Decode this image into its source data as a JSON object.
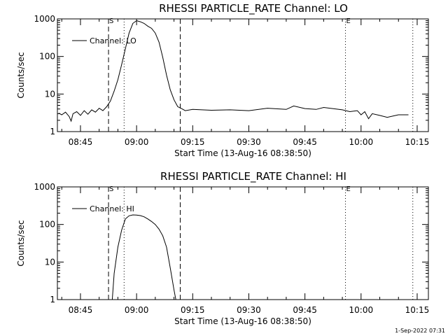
{
  "footer_stamp": "1-Sep-2022 07:31",
  "chart_data": [
    {
      "type": "line",
      "title": "RHESSI PARTICLE_RATE Channel: LO",
      "xlabel": "Start Time (13-Aug-16 08:38:50)",
      "ylabel": "Counts/sec",
      "yscale": "log",
      "xlim": [
        "08:38:50",
        "10:18:00"
      ],
      "ylim": [
        1,
        1000
      ],
      "xticks": [
        "08:45",
        "09:00",
        "09:15",
        "09:30",
        "09:45",
        "10:00",
        "10:15"
      ],
      "yticks": [
        "1",
        "10",
        "100",
        "1000"
      ],
      "legend": "top-left",
      "legend_entries": [
        "Channel: LO"
      ],
      "markers": [
        {
          "time": "08:52:30",
          "label": "S",
          "style": "dashed"
        },
        {
          "time": "08:56:40",
          "label": "",
          "style": "dotted"
        },
        {
          "time": "09:11:40",
          "label": "",
          "style": "dashed"
        },
        {
          "time": "09:55:50",
          "label": "E",
          "style": "dotted"
        },
        {
          "time": "10:13:50",
          "label": "",
          "style": "dotted"
        }
      ],
      "series": [
        {
          "name": "Channel: LO",
          "x": [
            "08:39:10",
            "08:40:00",
            "08:41:00",
            "08:42:00",
            "08:42:30",
            "08:43:00",
            "08:44:00",
            "08:45:00",
            "08:46:00",
            "08:47:00",
            "08:48:00",
            "08:49:00",
            "08:50:00",
            "08:51:00",
            "08:52:00",
            "08:53:00",
            "08:54:00",
            "08:55:00",
            "08:56:00",
            "08:57:00",
            "08:58:00",
            "08:59:00",
            "09:00:00",
            "09:01:00",
            "09:02:00",
            "09:03:00",
            "09:04:00",
            "09:05:00",
            "09:06:00",
            "09:07:00",
            "09:08:00",
            "09:09:00",
            "09:10:00",
            "09:11:00",
            "09:12:00",
            "09:13:00",
            "09:15:00",
            "09:20:00",
            "09:25:00",
            "09:30:00",
            "09:35:00",
            "09:40:00",
            "09:42:00",
            "09:45:00",
            "09:48:00",
            "09:50:00",
            "09:55:00",
            "09:57:00",
            "09:59:00",
            "10:00:00",
            "10:01:00",
            "10:02:00",
            "10:03:00",
            "10:05:00",
            "10:07:00",
            "10:10:00",
            "10:12:40"
          ],
          "y": [
            3.1,
            2.8,
            3.3,
            2.5,
            1.9,
            3.0,
            3.4,
            2.7,
            3.6,
            2.9,
            3.8,
            3.3,
            4.2,
            3.6,
            4.6,
            6.5,
            12,
            24,
            60,
            160,
            420,
            760,
            900,
            840,
            760,
            640,
            560,
            420,
            240,
            95,
            32,
            13,
            7,
            4.6,
            4.1,
            3.6,
            3.9,
            3.7,
            3.8,
            3.6,
            4.2,
            3.9,
            4.8,
            4.1,
            3.9,
            4.4,
            3.8,
            3.4,
            3.6,
            2.8,
            3.4,
            2.2,
            3.0,
            2.7,
            2.4,
            2.8,
            2.8
          ]
        }
      ]
    },
    {
      "type": "line",
      "title": "RHESSI PARTICLE_RATE Channel: HI",
      "xlabel": "Start Time (13-Aug-16 08:38:50)",
      "ylabel": "Counts/sec",
      "yscale": "log",
      "xlim": [
        "08:38:50",
        "10:18:00"
      ],
      "ylim": [
        1,
        1000
      ],
      "xticks": [
        "08:45",
        "09:00",
        "09:15",
        "09:30",
        "09:45",
        "10:00",
        "10:15"
      ],
      "yticks": [
        "1",
        "10",
        "100",
        "1000"
      ],
      "legend": "top-left",
      "legend_entries": [
        "Channel: HI"
      ],
      "markers": [
        {
          "time": "08:52:30",
          "label": "S",
          "style": "dashed"
        },
        {
          "time": "08:56:40",
          "label": "",
          "style": "dotted"
        },
        {
          "time": "09:11:40",
          "label": "",
          "style": "dashed"
        },
        {
          "time": "09:55:50",
          "label": "E",
          "style": "dotted"
        },
        {
          "time": "10:13:50",
          "label": "",
          "style": "dotted"
        }
      ],
      "series": [
        {
          "name": "Channel: HI",
          "x": [
            "08:53:30",
            "08:54:00",
            "08:55:00",
            "08:56:00",
            "08:57:00",
            "08:58:00",
            "08:59:00",
            "09:00:00",
            "09:01:00",
            "09:02:00",
            "09:03:00",
            "09:04:00",
            "09:05:00",
            "09:06:00",
            "09:07:00",
            "09:08:00",
            "09:09:00",
            "09:10:00",
            "09:10:30"
          ],
          "y": [
            1.0,
            5,
            25,
            70,
            140,
            170,
            180,
            178,
            172,
            160,
            140,
            120,
            100,
            75,
            50,
            25,
            7,
            1.8,
            1.0
          ]
        }
      ]
    }
  ]
}
